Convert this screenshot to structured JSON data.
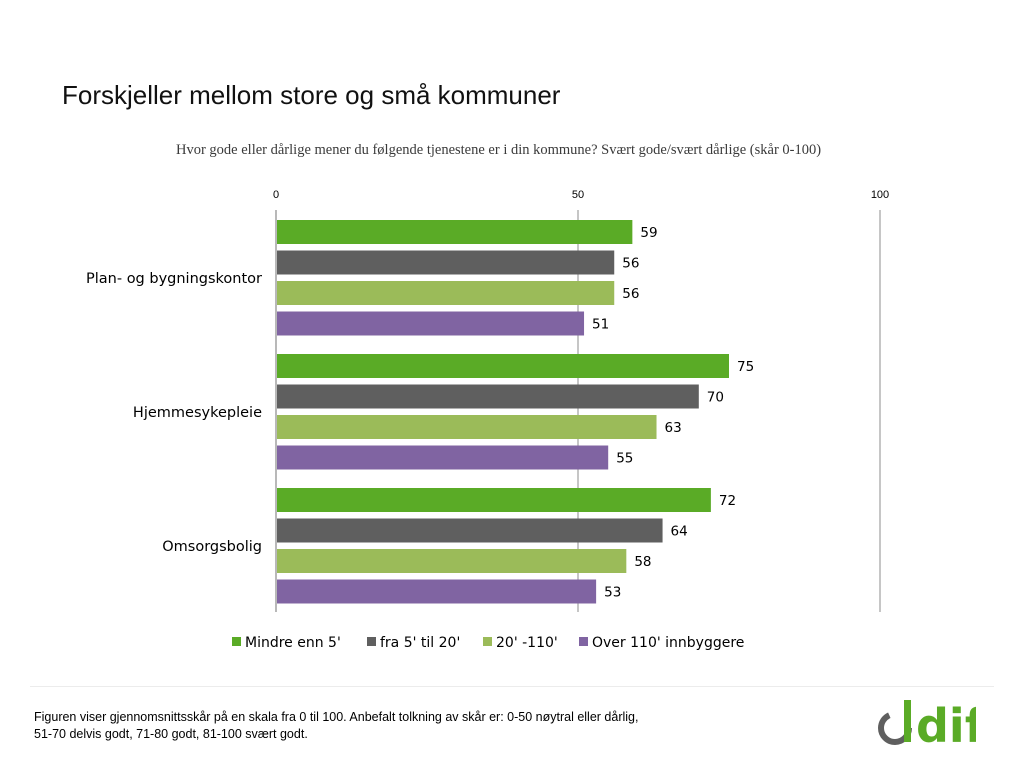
{
  "slide": {
    "title": "Forskjeller mellom store og små kommuner"
  },
  "chart_data": {
    "type": "bar",
    "orientation": "horizontal",
    "title": "Hvor gode eller dårlige mener du følgende tjenestene er i din kommune? Svært gode/svært dårlige (skår 0-100)",
    "categories": [
      "Plan- og bygningskontor",
      "Hjemmesykepleie",
      "Omsorgsbolig"
    ],
    "series": [
      {
        "name": "Mindre enn 5'",
        "color": "#5aab26",
        "values": [
          59,
          75,
          72
        ]
      },
      {
        "name": "fra 5' til 20'",
        "color": "#5f5f5f",
        "values": [
          56,
          70,
          64
        ]
      },
      {
        "name": "20' -110'",
        "color": "#9bbb59",
        "values": [
          56,
          63,
          58
        ]
      },
      {
        "name": "Over 110' innbyggere",
        "color": "#8064a2",
        "values": [
          51,
          55,
          53
        ]
      }
    ],
    "xlim": [
      0,
      100
    ],
    "xticks": [
      0,
      50,
      100
    ],
    "xticks_position": "top",
    "grid": true,
    "data_labels": true,
    "legend": "bottom"
  },
  "footer": {
    "note_line1": "Figuren viser gjennomsnittsskår på en skala fra 0 til 100. Anbefalt tolkning av skår er: 0-50 nøytral eller dårlig,",
    "note_line2": "51-70 delvis godt, 71-80 godt, 81-100 svært godt.",
    "logo_text": "difi",
    "logo_color": "#5aab26",
    "logo_mark_color": "#5f5f5f"
  }
}
